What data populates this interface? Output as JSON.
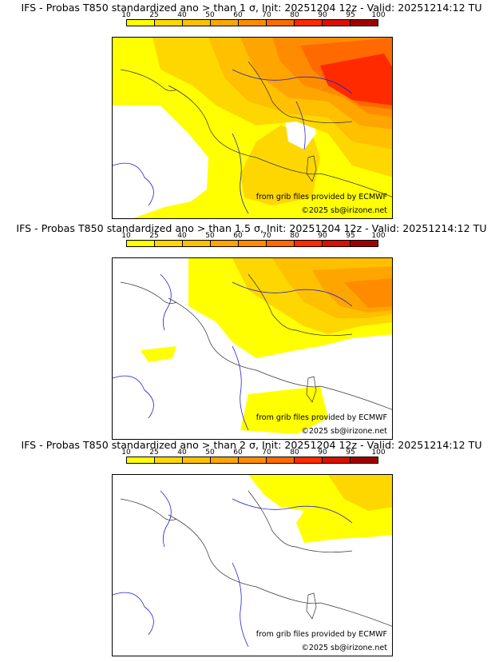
{
  "colorbar": {
    "ticks": [
      "10",
      "25",
      "40",
      "50",
      "60",
      "70",
      "80",
      "90",
      "95",
      "100"
    ],
    "colors": [
      "#ffff00",
      "#ffd700",
      "#ffc000",
      "#ffa500",
      "#ff8c00",
      "#ff6a00",
      "#ff2a00",
      "#d81000",
      "#a00000",
      "#600000"
    ]
  },
  "credits": {
    "source": "from grib files provided by ECMWF",
    "copyright": "©2025 sb@irizone.net"
  },
  "panels": [
    {
      "title": "IFS - Probas T850  standardized ano > than 1 σ, Init: 20251204 12z - Valid: 20251214:12 TU",
      "threshold": "1 σ"
    },
    {
      "title": "IFS - Probas T850  standardized ano > than 1.5 σ, Init: 20251204 12z - Valid: 20251214:12 TU",
      "threshold": "1.5 σ"
    },
    {
      "title": "IFS - Probas T850  standardized ano > than 2 σ, Init: 20251204 12z - Valid: 20251214:12 TU",
      "threshold": "2 σ"
    }
  ]
}
